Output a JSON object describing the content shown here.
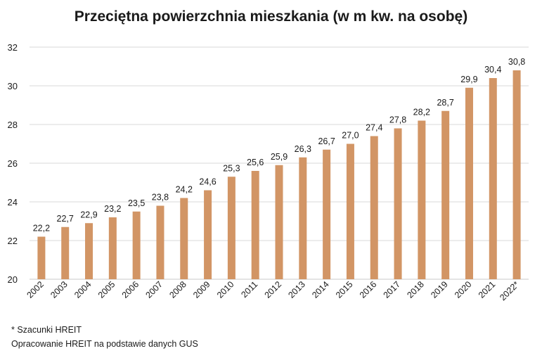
{
  "chart_data": {
    "type": "bar",
    "title": "Przeciętna powierzchnia mieszkania (w m kw. na osobę)",
    "categories": [
      "2002",
      "2003",
      "2004",
      "2005",
      "2006",
      "2007",
      "2008",
      "2009",
      "2010",
      "2011",
      "2012",
      "2013",
      "2014",
      "2015",
      "2016",
      "2017",
      "2018",
      "2019",
      "2020",
      "2021",
      "2022*"
    ],
    "values": [
      22.2,
      22.7,
      22.9,
      23.2,
      23.5,
      23.8,
      24.2,
      24.6,
      25.3,
      25.6,
      25.9,
      26.3,
      26.7,
      27.0,
      27.4,
      27.8,
      28.2,
      28.7,
      29.9,
      30.4,
      30.8
    ],
    "data_labels": [
      "22,2",
      "22,7",
      "22,9",
      "23,2",
      "23,5",
      "23,8",
      "24,2",
      "24,6",
      "25,3",
      "25,6",
      "25,9",
      "26,3",
      "26,7",
      "27,0",
      "27,4",
      "27,8",
      "28,2",
      "28,7",
      "29,9",
      "30,4",
      "30,8"
    ],
    "ylim": [
      20,
      32
    ],
    "yticks": [
      20,
      22,
      24,
      26,
      28,
      30,
      32
    ],
    "xlabel": "",
    "ylabel": "",
    "grid": true,
    "bar_color": "#d29565",
    "grid_color": "#d9d9d9"
  },
  "footnotes": {
    "line1": "* Szacunki HREIT",
    "line2": "Opracowanie HREIT na podstawie danych GUS"
  }
}
